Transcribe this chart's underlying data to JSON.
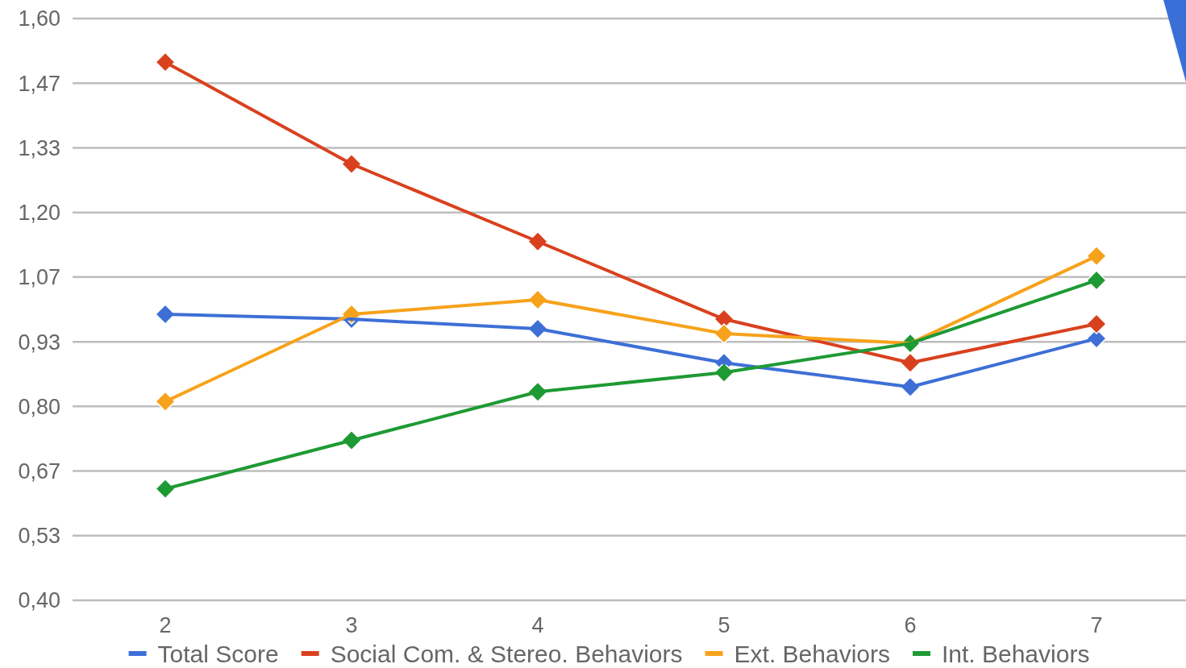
{
  "chart_data": {
    "type": "line",
    "categories": [
      "2",
      "3",
      "4",
      "5",
      "6",
      "7"
    ],
    "series": [
      {
        "name": "Total Score",
        "color": "#3d6fd6",
        "values": [
          0.99,
          0.98,
          0.96,
          0.89,
          0.84,
          0.94
        ]
      },
      {
        "name": "Social Com. & Stereo. Behaviors",
        "color": "#d9411e",
        "values": [
          1.51,
          1.3,
          1.14,
          0.98,
          0.89,
          0.97
        ]
      },
      {
        "name": "Ext. Behaviors",
        "color": "#f7a21b",
        "values": [
          0.81,
          0.99,
          1.02,
          0.95,
          0.93,
          1.11
        ]
      },
      {
        "name": "Int. Behaviors",
        "color": "#1e9a34",
        "values": [
          0.63,
          0.73,
          0.83,
          0.87,
          0.93,
          1.06
        ]
      }
    ],
    "ylim": [
      0.4,
      1.6
    ],
    "yticks": [
      {
        "value": 0.4,
        "label": "0,40"
      },
      {
        "value": 0.5333,
        "label": "0,53"
      },
      {
        "value": 0.6667,
        "label": "0,67"
      },
      {
        "value": 0.8,
        "label": "0,80"
      },
      {
        "value": 0.9333,
        "label": "0,93"
      },
      {
        "value": 1.0667,
        "label": "1,07"
      },
      {
        "value": 1.2,
        "label": "1,20"
      },
      {
        "value": 1.3333,
        "label": "1,33"
      },
      {
        "value": 1.4667,
        "label": "1,47"
      },
      {
        "value": 1.6,
        "label": "1,60"
      }
    ],
    "grid": "y",
    "legend": "bottom",
    "marker": "diamond",
    "line_style": "solid"
  }
}
